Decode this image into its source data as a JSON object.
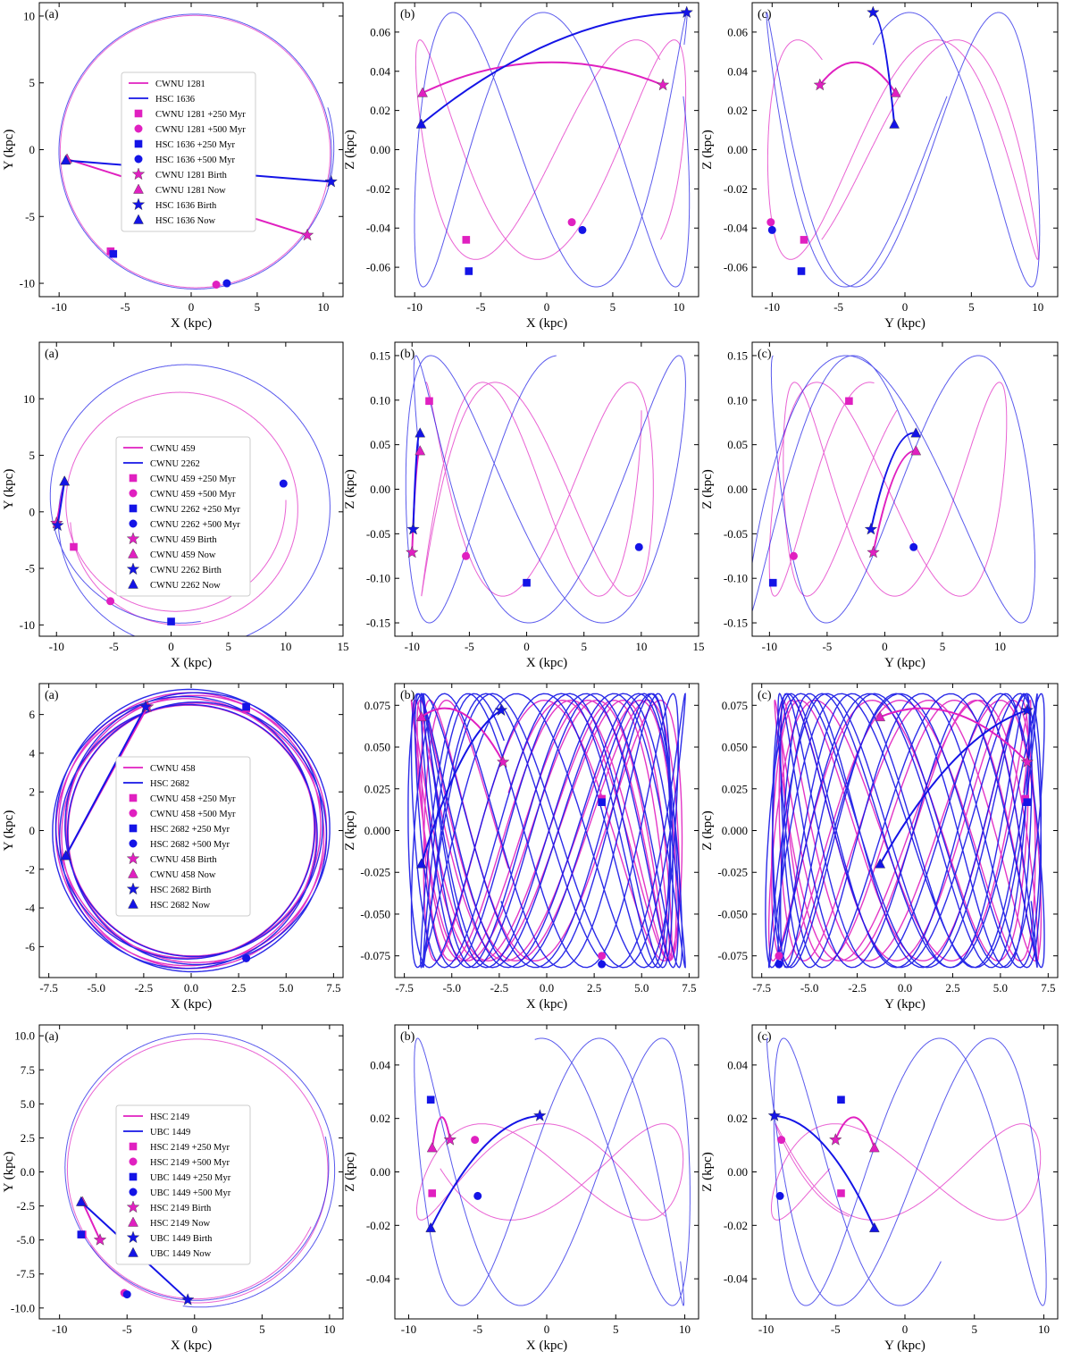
{
  "colors": {
    "cluster1": "#e020c0",
    "cluster2": "#1414e6"
  },
  "marker_legend_suffixes": [
    "+250 Myr",
    "+500 Myr",
    "Birth",
    "Now"
  ],
  "chart_data": [
    {
      "type": "line",
      "row": 1,
      "clusters": [
        "CWNU 1281",
        "HSC 1636"
      ],
      "legend_entries": [
        "CWNU 1281",
        "HSC 1636",
        "CWNU 1281 +250 Myr",
        "CWNU 1281 +500 Myr",
        "HSC 1636 +250 Myr",
        "HSC 1636 +500 Myr",
        "CWNU 1281 Birth",
        "CWNU 1281 Now",
        "HSC 1636 Birth",
        "HSC 1636 Now"
      ],
      "panels": [
        {
          "letter": "(a)",
          "xlabel": "X (kpc)",
          "ylabel": "Y (kpc)",
          "xlim": [
            -11.5,
            11.5
          ],
          "ylim": [
            -11,
            11
          ],
          "xticks": [
            -10,
            -5,
            0,
            5,
            10
          ],
          "yticks": [
            -10,
            -5,
            0,
            5,
            10
          ],
          "xtick_labels": [
            "-10",
            "-5",
            "0",
            "5",
            "10"
          ],
          "ytick_labels": [
            "-10",
            "-5",
            "0",
            "5",
            "10"
          ]
        },
        {
          "letter": "(b)",
          "xlabel": "X (kpc)",
          "ylabel": "Z (kpc)",
          "xlim": [
            -11.5,
            11.5
          ],
          "ylim": [
            -0.075,
            0.075
          ],
          "xticks": [
            -10,
            -5,
            0,
            5,
            10
          ],
          "yticks": [
            -0.06,
            -0.04,
            -0.02,
            0,
            0.02,
            0.04,
            0.06
          ],
          "xtick_labels": [
            "-10",
            "-5",
            "0",
            "5",
            "10"
          ],
          "ytick_labels": [
            "-0.06",
            "-0.04",
            "-0.02",
            "0.00",
            "0.02",
            "0.04",
            "0.06"
          ]
        },
        {
          "letter": "(c)",
          "xlabel": "Y (kpc)",
          "ylabel": "Z (kpc)",
          "xlim": [
            -11.5,
            11.5
          ],
          "ylim": [
            -0.075,
            0.075
          ],
          "xticks": [
            -10,
            -5,
            0,
            5,
            10
          ],
          "yticks": [
            -0.06,
            -0.04,
            -0.02,
            0,
            0.02,
            0.04,
            0.06
          ],
          "xtick_labels": [
            "-10",
            "-5",
            "0",
            "5",
            "10"
          ],
          "ytick_labels": [
            "-0.06",
            "-0.04",
            "-0.02",
            "0.00",
            "0.02",
            "0.04",
            "0.06"
          ]
        }
      ],
      "orbits": [
        {
          "R": 10.3,
          "phase0": -36,
          "dphi": 360,
          "n": 2.5,
          "zamp": 0.056,
          "zphase": 35
        },
        {
          "R": 10.4,
          "phase0": -13,
          "dphi": 390,
          "n": 2.7,
          "zamp": 0.07,
          "zphase": 85
        }
      ],
      "markers": [
        {
          "X": 8.8,
          "Y": -6.4,
          "Z": 0.033,
          "Y_for_YZ": -6.4
        },
        {
          "X": -9.4,
          "Y": -0.7,
          "Z": 0.029,
          "Y_for_YZ": -0.7
        },
        {
          "X": 10.6,
          "Y": -2.4,
          "Z": 0.07,
          "Y_for_YZ": -2.4
        },
        {
          "X": -9.5,
          "Y": -0.8,
          "Z": 0.013,
          "Y_for_YZ": -0.8
        }
      ],
      "points": {
        "c1_250": [
          -6.1,
          -7.6,
          -0.046
        ],
        "c1_500": [
          1.9,
          -10.1,
          -0.037
        ],
        "c2_250": [
          -5.9,
          -7.8,
          -0.062
        ],
        "c2_500": [
          2.7,
          -10.0,
          -0.041
        ]
      }
    },
    {
      "type": "line",
      "row": 2,
      "clusters": [
        "CWNU 459",
        "CWNU 2262"
      ],
      "legend_entries": [
        "CWNU 459",
        "CWNU 2262",
        "CWNU 459 +250 Myr",
        "CWNU 459 +500 Myr",
        "CWNU 2262 +250 Myr",
        "CWNU 2262 +500 Myr",
        "CWNU 459 Birth",
        "CWNU 459 Now",
        "CWNU 2262 Birth",
        "CWNU 2262 Now"
      ],
      "panels": [
        {
          "letter": "(a)",
          "xlabel": "X (kpc)",
          "ylabel": "Y (kpc)",
          "xlim": [
            -11.5,
            15
          ],
          "ylim": [
            -11,
            15
          ],
          "xticks": [
            -10,
            -5,
            0,
            5,
            10,
            15
          ],
          "yticks": [
            -10,
            -5,
            0,
            5,
            10
          ],
          "xtick_labels": [
            "-10",
            "-5",
            "0",
            "5",
            "10",
            "15"
          ],
          "ytick_labels": [
            "-10",
            "-5",
            "0",
            "5",
            "10"
          ]
        },
        {
          "letter": "(b)",
          "xlabel": "X (kpc)",
          "ylabel": "Z (kpc)",
          "xlim": [
            -11.5,
            15
          ],
          "ylim": [
            -0.165,
            0.165
          ],
          "xticks": [
            -10,
            -5,
            0,
            5,
            10,
            15
          ],
          "yticks": [
            -0.15,
            -0.1,
            -0.05,
            0,
            0.05,
            0.1,
            0.15
          ],
          "xtick_labels": [
            "-10",
            "-5",
            "0",
            "5",
            "10",
            "15"
          ],
          "ytick_labels": [
            "-0.15",
            "-0.10",
            "-0.05",
            "0.00",
            "0.05",
            "0.10",
            "0.15"
          ]
        },
        {
          "letter": "(c)",
          "xlabel": "Y (kpc)",
          "ylabel": "Z (kpc)",
          "xlim": [
            -11.5,
            15
          ],
          "ylim": [
            -0.165,
            0.165
          ],
          "xticks": [
            -10,
            -5,
            0,
            5,
            10
          ],
          "yticks": [
            -0.15,
            -0.1,
            -0.05,
            0,
            0.05,
            0.1,
            0.15
          ],
          "xtick_labels": [
            "-10",
            "-5",
            "0",
            "5",
            "10"
          ],
          "ytick_labels": [
            "-0.15",
            "-0.10",
            "-0.05",
            "0.00",
            "0.05",
            "0.10",
            "0.15"
          ]
        }
      ],
      "orbits": [
        {
          "R": 9.9,
          "phase0": 186,
          "dphi": 540,
          "n": 2.6,
          "zamp": 0.12,
          "zphase": -40,
          "ecc": 0.12
        },
        {
          "R": 11.8,
          "phase0": 165,
          "dphi": 480,
          "n": 2.4,
          "zamp": 0.15,
          "zphase": -20,
          "ecc": 0.18
        }
      ],
      "markers": [
        {
          "X": -10.0,
          "Y": -1.0,
          "Z": -0.071,
          "Y_for_YZ": -1.0
        },
        {
          "X": -9.3,
          "Y": 2.7,
          "Z": 0.043,
          "Y_for_YZ": 2.7
        },
        {
          "X": -9.9,
          "Y": -1.2,
          "Z": -0.045,
          "Y_for_YZ": -1.2
        },
        {
          "X": -9.3,
          "Y": 2.7,
          "Z": 0.063,
          "Y_for_YZ": 2.7
        }
      ],
      "points": {
        "c1_250": [
          -8.5,
          -3.1,
          0.099
        ],
        "c1_500": [
          -5.3,
          -7.9,
          -0.075
        ],
        "c2_250": [
          0.0,
          -9.7,
          -0.105
        ],
        "c2_500": [
          9.8,
          2.5,
          -0.065
        ]
      }
    },
    {
      "type": "line",
      "row": 3,
      "clusters": [
        "CWNU 458",
        "HSC 2682"
      ],
      "legend_entries": [
        "CWNU 458",
        "HSC 2682",
        "CWNU 458 +250 Myr",
        "CWNU 458 +500 Myr",
        "HSC 2682 +250 Myr",
        "HSC 2682 +500 Myr",
        "CWNU 458 Birth",
        "CWNU 458 Now",
        "HSC 2682 Birth",
        "HSC 2682 Now"
      ],
      "panels": [
        {
          "letter": "(a)",
          "xlabel": "X (kpc)",
          "ylabel": "Y (kpc)",
          "xlim": [
            -8,
            8
          ],
          "ylim": [
            -7.6,
            7.6
          ],
          "xticks": [
            -7.5,
            -5,
            -2.5,
            0,
            2.5,
            5,
            7.5
          ],
          "yticks": [
            -6,
            -4,
            -2,
            0,
            2,
            4,
            6
          ],
          "xtick_labels": [
            "-7.5",
            "-5.0",
            "-2.5",
            "0.0",
            "2.5",
            "5.0",
            "7.5"
          ],
          "ytick_labels": [
            "-6",
            "-4",
            "-2",
            "0",
            "2",
            "4",
            "6"
          ]
        },
        {
          "letter": "(b)",
          "xlabel": "X (kpc)",
          "ylabel": "Z (kpc)",
          "xlim": [
            -8,
            8
          ],
          "ylim": [
            -0.088,
            0.088
          ],
          "xticks": [
            -7.5,
            -5,
            -2.5,
            0,
            2.5,
            5,
            7.5
          ],
          "yticks": [
            -0.075,
            -0.05,
            -0.025,
            0,
            0.025,
            0.05,
            0.075
          ],
          "xtick_labels": [
            "-7.5",
            "-5.0",
            "-2.5",
            "0.0",
            "2.5",
            "5.0",
            "7.5"
          ],
          "ytick_labels": [
            "-0.075",
            "-0.050",
            "-0.025",
            "0.000",
            "0.025",
            "0.050",
            "0.075"
          ]
        },
        {
          "letter": "(c)",
          "xlabel": "Y (kpc)",
          "ylabel": "Z (kpc)",
          "xlim": [
            -8,
            8
          ],
          "ylim": [
            -0.088,
            0.088
          ],
          "xticks": [
            -7.5,
            -5,
            -2.5,
            0,
            2.5,
            5,
            7.5
          ],
          "yticks": [
            -0.075,
            -0.05,
            -0.025,
            0,
            0.025,
            0.05,
            0.075
          ],
          "xtick_labels": [
            "-7.5",
            "-5.0",
            "-2.5",
            "0.0",
            "2.5",
            "5.0",
            "7.5"
          ],
          "ytick_labels": [
            "-0.075",
            "-0.050",
            "-0.025",
            "0.000",
            "0.025",
            "0.050",
            "0.075"
          ]
        }
      ],
      "orbits": [
        {
          "R": 6.8,
          "phase0": 108,
          "dphi": 1800,
          "n": 2.9,
          "zamp": 0.078,
          "zphase": 30,
          "ecc": 0.05
        },
        {
          "R": 6.9,
          "phase0": 110,
          "dphi": 2880,
          "n": 3.1,
          "zamp": 0.082,
          "zphase": 60,
          "ecc": 0.06
        }
      ],
      "markers": [
        {
          "X": -2.3,
          "Y": 6.4,
          "Z": 0.041,
          "Y_for_YZ": 6.4
        },
        {
          "X": -6.6,
          "Y": -1.3,
          "Z": 0.068,
          "Y_for_YZ": -1.3
        },
        {
          "X": -2.4,
          "Y": 6.4,
          "Z": 0.072,
          "Y_for_YZ": 6.4
        },
        {
          "X": -6.6,
          "Y": -1.3,
          "Z": -0.02,
          "Y_for_YZ": -1.3
        }
      ],
      "points": {
        "c1_250": [
          2.9,
          6.3,
          0.019
        ],
        "c1_500": [
          2.9,
          -6.6,
          -0.075
        ],
        "c2_250": [
          2.9,
          6.4,
          0.017
        ],
        "c2_500": [
          2.9,
          -6.6,
          -0.08
        ]
      }
    },
    {
      "type": "line",
      "row": 4,
      "clusters": [
        "HSC 2149",
        "UBC 1449"
      ],
      "legend_entries": [
        "HSC 2149",
        "UBC 1449",
        "HSC 2149 +250 Myr",
        "HSC 2149 +500 Myr",
        "UBC 1449 +250 Myr",
        "UBC 1449 +500 Myr",
        "HSC 2149 Birth",
        "HSC 2149 Now",
        "UBC 1449 Birth",
        "UBC 1449 Now"
      ],
      "panels": [
        {
          "letter": "(a)",
          "xlabel": "X (kpc)",
          "ylabel": "Y (kpc)",
          "xlim": [
            -11.5,
            11
          ],
          "ylim": [
            -10.8,
            10.8
          ],
          "xticks": [
            -10,
            -5,
            0,
            5,
            10
          ],
          "yticks": [
            -10,
            -7.5,
            -5,
            -2.5,
            0,
            2.5,
            5,
            7.5,
            10
          ],
          "xtick_labels": [
            "-10",
            "-5",
            "0",
            "5",
            "10"
          ],
          "ytick_labels": [
            "-10.0",
            "-7.5",
            "-5.0",
            "-2.5",
            "0.0",
            "2.5",
            "5.0",
            "7.5",
            "10.0"
          ]
        },
        {
          "letter": "(b)",
          "xlabel": "X (kpc)",
          "ylabel": "Z (kpc)",
          "xlim": [
            -11,
            11
          ],
          "ylim": [
            -0.055,
            0.055
          ],
          "xticks": [
            -10,
            -5,
            0,
            5,
            10
          ],
          "yticks": [
            -0.04,
            -0.02,
            0,
            0.02,
            0.04
          ],
          "xtick_labels": [
            "-10",
            "-5",
            "0",
            "5",
            "10"
          ],
          "ytick_labels": [
            "-0.04",
            "-0.02",
            "0.00",
            "0.02",
            "0.04"
          ]
        },
        {
          "letter": "(c)",
          "xlabel": "Y (kpc)",
          "ylabel": "Z (kpc)",
          "xlim": [
            -11,
            11
          ],
          "ylim": [
            -0.055,
            0.055
          ],
          "xticks": [
            -10,
            -5,
            0,
            5,
            10
          ],
          "yticks": [
            -0.04,
            -0.02,
            0,
            0.02,
            0.04
          ],
          "xtick_labels": [
            "-10",
            "-5",
            "0",
            "5",
            "10"
          ],
          "ytick_labels": [
            "-0.04",
            "-0.02",
            "0.00",
            "0.02",
            "0.04"
          ]
        }
      ],
      "orbits": [
        {
          "R": 9.6,
          "phase0": 215,
          "dphi": 480,
          "n": 2.4,
          "zamp": 0.018,
          "zphase": 20,
          "ecc": 0.03
        },
        {
          "R": 9.9,
          "phase0": 265,
          "dphi": 470,
          "n": 2.8,
          "zamp": 0.05,
          "zphase": 60,
          "ecc": 0.05
        }
      ],
      "markers": [
        {
          "X": -7.0,
          "Y": -5.0,
          "Z": 0.012,
          "Y_for_YZ": -5.0
        },
        {
          "X": -8.3,
          "Y": -2.2,
          "Z": 0.009,
          "Y_for_YZ": -2.2
        },
        {
          "X": -0.5,
          "Y": -9.4,
          "Z": 0.021,
          "Y_for_YZ": -9.4
        },
        {
          "X": -8.4,
          "Y": -2.2,
          "Z": -0.021,
          "Y_for_YZ": -2.2
        }
      ],
      "points": {
        "c1_250": [
          -8.3,
          -4.6,
          -0.008
        ],
        "c1_500": [
          -5.2,
          -8.9,
          0.012
        ],
        "c2_250": [
          -8.4,
          -4.6,
          0.027
        ],
        "c2_500": [
          -5.0,
          -9.0,
          -0.009
        ]
      }
    }
  ]
}
